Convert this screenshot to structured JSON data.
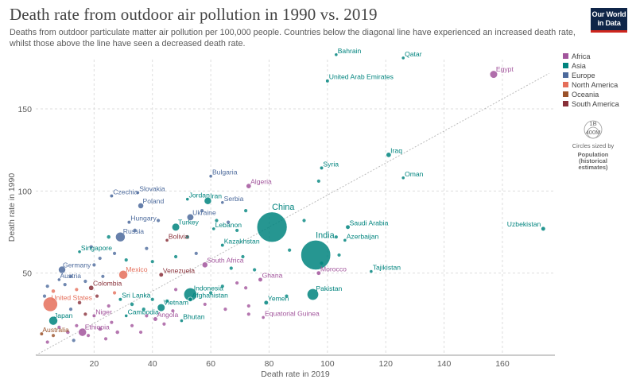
{
  "header": {
    "title": "Death rate from outdoor air pollution in 1990 vs. 2019",
    "subtitle": "Deaths from outdoor particulate matter air pollution per 100,000 people. Countries below the diagonal line have experienced an increased death rate, whilst those above the line have seen a decreased death rate.",
    "logo_line1": "Our World",
    "logo_line2": "in Data"
  },
  "legend": {
    "regions": [
      {
        "name": "Africa",
        "color": "#a2559c"
      },
      {
        "name": "Asia",
        "color": "#00847e"
      },
      {
        "name": "Europe",
        "color": "#4c6a9c"
      },
      {
        "name": "North America",
        "color": "#e56e5a"
      },
      {
        "name": "Oceania",
        "color": "#9a5129"
      },
      {
        "name": "South America",
        "color": "#883039"
      }
    ],
    "size_legend": {
      "big_label": "1B",
      "small_label": "400M",
      "caption": "Circles sized by",
      "title_line1": "Population",
      "title_line2": "(historical",
      "title_line3": "estimates)"
    }
  },
  "chart_data": {
    "type": "scatter",
    "title": "Death rate from outdoor air pollution in 1990 vs. 2019",
    "xlabel": "Death rate in 2019",
    "ylabel": "Death rate in 1990",
    "xlim": [
      0,
      178
    ],
    "ylim": [
      0,
      180
    ],
    "xticks": [
      20,
      40,
      60,
      80,
      100,
      120,
      140,
      160
    ],
    "yticks": [
      50,
      100,
      150
    ],
    "grid": true,
    "diagonal_line": true,
    "legend_position": "right",
    "labeled_points": [
      {
        "name": "Bahrain",
        "x": 103,
        "y": 183,
        "region": "Asia",
        "pop": 1.5
      },
      {
        "name": "Qatar",
        "x": 126,
        "y": 181,
        "region": "Asia",
        "pop": 1
      },
      {
        "name": "Egypt",
        "x": 157,
        "y": 171,
        "region": "Africa",
        "pop": 9
      },
      {
        "name": "United Arab Emirates",
        "x": 100,
        "y": 167,
        "region": "Asia",
        "pop": 2
      },
      {
        "name": "Iraq",
        "x": 121,
        "y": 122,
        "region": "Asia",
        "pop": 4
      },
      {
        "name": "Syria",
        "x": 98,
        "y": 114,
        "region": "Asia",
        "pop": 2
      },
      {
        "name": "Oman",
        "x": 126,
        "y": 108,
        "region": "Asia",
        "pop": 1.5
      },
      {
        "name": "Bulgaria",
        "x": 60,
        "y": 109,
        "region": "Europe",
        "pop": 1.5
      },
      {
        "name": "Algeria",
        "x": 73,
        "y": 103,
        "region": "Africa",
        "pop": 4
      },
      {
        "name": "Slovakia",
        "x": 35,
        "y": 99,
        "region": "Europe",
        "pop": 1.5
      },
      {
        "name": "Czechia",
        "x": 26,
        "y": 97,
        "region": "Europe",
        "pop": 2
      },
      {
        "name": "Jordan",
        "x": 52,
        "y": 95,
        "region": "Asia",
        "pop": 1.5
      },
      {
        "name": "Iran",
        "x": 59,
        "y": 94,
        "region": "Asia",
        "pop": 8
      },
      {
        "name": "Serbia",
        "x": 64,
        "y": 93,
        "region": "Europe",
        "pop": 1.5
      },
      {
        "name": "Poland",
        "x": 36,
        "y": 91,
        "region": "Europe",
        "pop": 5
      },
      {
        "name": "Ukraine",
        "x": 53,
        "y": 84,
        "region": "Europe",
        "pop": 7
      },
      {
        "name": "China",
        "x": 81,
        "y": 78,
        "region": "Asia",
        "pop": 140
      },
      {
        "name": "Hungary",
        "x": 32,
        "y": 81,
        "region": "Europe",
        "pop": 2
      },
      {
        "name": "Turkey",
        "x": 48,
        "y": 78,
        "region": "Asia",
        "pop": 9
      },
      {
        "name": "Lebanon",
        "x": 61,
        "y": 77,
        "region": "Asia",
        "pop": 1.5
      },
      {
        "name": "Saudi Arabia",
        "x": 107,
        "y": 78,
        "region": "Asia",
        "pop": 3
      },
      {
        "name": "Uzbekistan",
        "x": 174,
        "y": 77,
        "region": "Asia",
        "pop": 3
      },
      {
        "name": "Russia",
        "x": 29,
        "y": 72,
        "region": "Europe",
        "pop": 14
      },
      {
        "name": "Bolivia",
        "x": 45,
        "y": 70,
        "region": "South America",
        "pop": 1.5
      },
      {
        "name": "Kazakhstan",
        "x": 64,
        "y": 67,
        "region": "Asia",
        "pop": 2
      },
      {
        "name": "Azerbaijan",
        "x": 106,
        "y": 70,
        "region": "Asia",
        "pop": 1.5
      },
      {
        "name": "India",
        "x": 96,
        "y": 61,
        "region": "Asia",
        "pop": 136
      },
      {
        "name": "Singapore",
        "x": 15,
        "y": 63,
        "region": "Asia",
        "pop": 1.5
      },
      {
        "name": "South Africa",
        "x": 58,
        "y": 55,
        "region": "Africa",
        "pop": 5
      },
      {
        "name": "Morocco",
        "x": 97,
        "y": 50,
        "region": "Africa",
        "pop": 3
      },
      {
        "name": "Tajikistan",
        "x": 115,
        "y": 51,
        "region": "Asia",
        "pop": 1.5
      },
      {
        "name": "Germany",
        "x": 9,
        "y": 52,
        "region": "Europe",
        "pop": 8
      },
      {
        "name": "Mexico",
        "x": 30,
        "y": 49,
        "region": "North America",
        "pop": 12
      },
      {
        "name": "Venezuela",
        "x": 43,
        "y": 49,
        "region": "South America",
        "pop": 3
      },
      {
        "name": "Austria",
        "x": 8,
        "y": 46,
        "region": "Europe",
        "pop": 1.5
      },
      {
        "name": "Ghana",
        "x": 77,
        "y": 46,
        "region": "Africa",
        "pop": 3
      },
      {
        "name": "Colombia",
        "x": 19,
        "y": 41,
        "region": "South America",
        "pop": 4
      },
      {
        "name": "Indonesia",
        "x": 53,
        "y": 37,
        "region": "Asia",
        "pop": 26
      },
      {
        "name": "Pakistan",
        "x": 95,
        "y": 37,
        "region": "Asia",
        "pop": 20
      },
      {
        "name": "United States",
        "x": 5,
        "y": 31,
        "region": "North America",
        "pop": 32
      },
      {
        "name": "Sri Lanka",
        "x": 29,
        "y": 34,
        "region": "Asia",
        "pop": 2
      },
      {
        "name": "Afghanistan",
        "x": 53,
        "y": 34,
        "region": "Asia",
        "pop": 3
      },
      {
        "name": "Yemen",
        "x": 79,
        "y": 32,
        "region": "Asia",
        "pop": 3
      },
      {
        "name": "Vietnam",
        "x": 43,
        "y": 29,
        "region": "Asia",
        "pop": 9
      },
      {
        "name": "Japan",
        "x": 6,
        "y": 21,
        "region": "Asia",
        "pop": 12
      },
      {
        "name": "Niger",
        "x": 20,
        "y": 24,
        "region": "Africa",
        "pop": 2
      },
      {
        "name": "Cambodia",
        "x": 31,
        "y": 24,
        "region": "Asia",
        "pop": 1.5
      },
      {
        "name": "Angola",
        "x": 41,
        "y": 22,
        "region": "Africa",
        "pop": 3
      },
      {
        "name": "Bhutan",
        "x": 50,
        "y": 21,
        "region": "Asia",
        "pop": 1
      },
      {
        "name": "Equatorial Guinea",
        "x": 78,
        "y": 23,
        "region": "Africa",
        "pop": 1
      },
      {
        "name": "Ethiopia",
        "x": 16,
        "y": 14,
        "region": "Africa",
        "pop": 10
      },
      {
        "name": "Australia",
        "x": 2,
        "y": 13,
        "region": "Oceania",
        "pop": 2
      }
    ],
    "unlabeled_points": [
      {
        "x": 4,
        "y": 8,
        "region": "Africa",
        "pop": 1
      },
      {
        "x": 6,
        "y": 12,
        "region": "Oceania",
        "pop": 1
      },
      {
        "x": 8,
        "y": 17,
        "region": "Africa",
        "pop": 1
      },
      {
        "x": 11,
        "y": 14,
        "region": "Africa",
        "pop": 2
      },
      {
        "x": 13,
        "y": 9,
        "region": "Europe",
        "pop": 1
      },
      {
        "x": 14,
        "y": 18,
        "region": "Africa",
        "pop": 1
      },
      {
        "x": 18,
        "y": 12,
        "region": "Africa",
        "pop": 1
      },
      {
        "x": 22,
        "y": 16,
        "region": "Africa",
        "pop": 2
      },
      {
        "x": 24,
        "y": 10,
        "region": "Africa",
        "pop": 1
      },
      {
        "x": 26,
        "y": 20,
        "region": "Africa",
        "pop": 1
      },
      {
        "x": 28,
        "y": 14,
        "region": "Africa",
        "pop": 2
      },
      {
        "x": 33,
        "y": 18,
        "region": "Africa",
        "pop": 1
      },
      {
        "x": 36,
        "y": 14,
        "region": "Africa",
        "pop": 1
      },
      {
        "x": 38,
        "y": 24,
        "region": "Africa",
        "pop": 1
      },
      {
        "x": 44,
        "y": 19,
        "region": "Africa",
        "pop": 1
      },
      {
        "x": 47,
        "y": 27,
        "region": "Africa",
        "pop": 1
      },
      {
        "x": 12,
        "y": 28,
        "region": "Europe",
        "pop": 1
      },
      {
        "x": 15,
        "y": 32,
        "region": "South America",
        "pop": 2
      },
      {
        "x": 17,
        "y": 25,
        "region": "South America",
        "pop": 1
      },
      {
        "x": 21,
        "y": 36,
        "region": "South America",
        "pop": 1
      },
      {
        "x": 25,
        "y": 30,
        "region": "Africa",
        "pop": 1
      },
      {
        "x": 27,
        "y": 38,
        "region": "North America",
        "pop": 1
      },
      {
        "x": 33,
        "y": 31,
        "region": "Asia",
        "pop": 2
      },
      {
        "x": 37,
        "y": 28,
        "region": "Asia",
        "pop": 1
      },
      {
        "x": 3,
        "y": 36,
        "region": "Europe",
        "pop": 1
      },
      {
        "x": 4,
        "y": 42,
        "region": "Europe",
        "pop": 1
      },
      {
        "x": 6,
        "y": 39,
        "region": "North America",
        "pop": 2
      },
      {
        "x": 10,
        "y": 43,
        "region": "Europe",
        "pop": 1
      },
      {
        "x": 12,
        "y": 48,
        "region": "Europe",
        "pop": 1
      },
      {
        "x": 14,
        "y": 40,
        "region": "North America",
        "pop": 1
      },
      {
        "x": 17,
        "y": 45,
        "region": "Europe",
        "pop": 1
      },
      {
        "x": 20,
        "y": 55,
        "region": "Europe",
        "pop": 1
      },
      {
        "x": 23,
        "y": 48,
        "region": "Europe",
        "pop": 1
      },
      {
        "x": 22,
        "y": 59,
        "region": "Europe",
        "pop": 1
      },
      {
        "x": 19,
        "y": 66,
        "region": "Europe",
        "pop": 1
      },
      {
        "x": 25,
        "y": 72,
        "region": "Asia",
        "pop": 2
      },
      {
        "x": 27,
        "y": 62,
        "region": "Europe",
        "pop": 1
      },
      {
        "x": 31,
        "y": 58,
        "region": "Asia",
        "pop": 1
      },
      {
        "x": 34,
        "y": 76,
        "region": "Europe",
        "pop": 2
      },
      {
        "x": 38,
        "y": 65,
        "region": "Europe",
        "pop": 1
      },
      {
        "x": 40,
        "y": 57,
        "region": "Asia",
        "pop": 1
      },
      {
        "x": 42,
        "y": 82,
        "region": "Europe",
        "pop": 1
      },
      {
        "x": 48,
        "y": 60,
        "region": "Asia",
        "pop": 1
      },
      {
        "x": 52,
        "y": 72,
        "region": "Asia",
        "pop": 2
      },
      {
        "x": 55,
        "y": 62,
        "region": "Europe",
        "pop": 1
      },
      {
        "x": 57,
        "y": 88,
        "region": "Europe",
        "pop": 1
      },
      {
        "x": 62,
        "y": 82,
        "region": "Asia",
        "pop": 1
      },
      {
        "x": 66,
        "y": 81,
        "region": "Europe",
        "pop": 1
      },
      {
        "x": 69,
        "y": 76,
        "region": "Asia",
        "pop": 1
      },
      {
        "x": 71,
        "y": 60,
        "region": "Asia",
        "pop": 1
      },
      {
        "x": 72,
        "y": 88,
        "region": "Asia",
        "pop": 1
      },
      {
        "x": 75,
        "y": 52,
        "region": "Asia",
        "pop": 1
      },
      {
        "x": 67,
        "y": 53,
        "region": "Asia",
        "pop": 1
      },
      {
        "x": 69,
        "y": 44,
        "region": "Africa",
        "pop": 1
      },
      {
        "x": 64,
        "y": 42,
        "region": "Asia",
        "pop": 1
      },
      {
        "x": 72,
        "y": 41,
        "region": "Africa",
        "pop": 1
      },
      {
        "x": 60,
        "y": 38,
        "region": "Asia",
        "pop": 1
      },
      {
        "x": 58,
        "y": 31,
        "region": "Africa",
        "pop": 1
      },
      {
        "x": 65,
        "y": 28,
        "region": "Africa",
        "pop": 1
      },
      {
        "x": 73,
        "y": 30,
        "region": "Africa",
        "pop": 1
      },
      {
        "x": 73,
        "y": 25,
        "region": "Africa",
        "pop": 1
      },
      {
        "x": 86,
        "y": 36,
        "region": "Asia",
        "pop": 1
      },
      {
        "x": 87,
        "y": 64,
        "region": "Asia",
        "pop": 1
      },
      {
        "x": 98,
        "y": 56,
        "region": "Asia",
        "pop": 1
      },
      {
        "x": 103,
        "y": 72,
        "region": "Asia",
        "pop": 1
      },
      {
        "x": 104,
        "y": 61,
        "region": "Asia",
        "pop": 1
      },
      {
        "x": 97,
        "y": 106,
        "region": "Asia",
        "pop": 1
      },
      {
        "x": 92,
        "y": 82,
        "region": "Asia",
        "pop": 1
      },
      {
        "x": 48,
        "y": 40,
        "region": "Africa",
        "pop": 1
      },
      {
        "x": 40,
        "y": 34,
        "region": "Asia",
        "pop": 1
      },
      {
        "x": 45,
        "y": 33,
        "region": "Asia",
        "pop": 1
      }
    ]
  }
}
